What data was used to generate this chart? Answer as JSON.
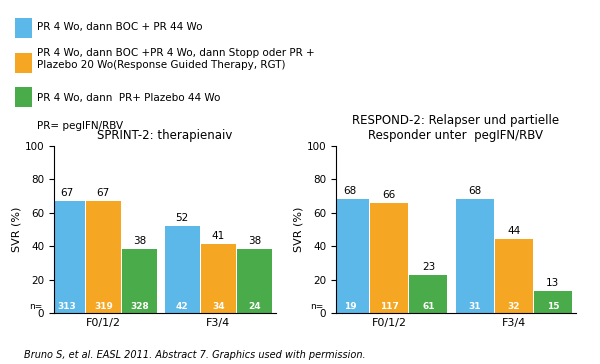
{
  "legend": [
    {
      "label": "PR 4 Wo, dann BOC + PR 44 Wo",
      "color": "#5bb8e8"
    },
    {
      "label": "PR 4 Wo, dann BOC +PR 4 Wo, dann Stopp oder PR +\nPlazebo 20 Wo(Response Guided Therapy, RGT)",
      "color": "#f5a623"
    },
    {
      "label": "PR 4 Wo, dann  PR+ Plazebo 44 Wo",
      "color": "#4aab4a"
    },
    {
      "label": "PR= pegIFN/RBV",
      "color": null
    }
  ],
  "sprint2": {
    "title": "SPRINT-2: therapienaiv",
    "ylabel": "SVR (%)",
    "ylim": [
      0,
      100
    ],
    "groups": [
      "F0/1/2",
      "F3/4"
    ],
    "values": [
      [
        67,
        67,
        38
      ],
      [
        52,
        41,
        38
      ]
    ],
    "n_labels": [
      [
        "313",
        "319",
        "328"
      ],
      [
        "42",
        "34",
        "24"
      ]
    ]
  },
  "respond2": {
    "title": "RESPOND-2: Relapser und partielle\nResponder unter  pegIFN/RBV",
    "ylabel": "SVR (%)",
    "ylim": [
      0,
      100
    ],
    "groups": [
      "F0/1/2",
      "F3/4"
    ],
    "values": [
      [
        68,
        66,
        23
      ],
      [
        68,
        44,
        13
      ]
    ],
    "n_labels": [
      [
        "19",
        "117",
        "61"
      ],
      [
        "31",
        "32",
        "15"
      ]
    ]
  },
  "colors": [
    "#5bb8e8",
    "#f5a623",
    "#4aab4a"
  ],
  "bar_width": 0.22,
  "footnote": "Bruno S, et al. EASL 2011. Abstract 7. Graphics used with permission.",
  "background_color": "#ffffff"
}
